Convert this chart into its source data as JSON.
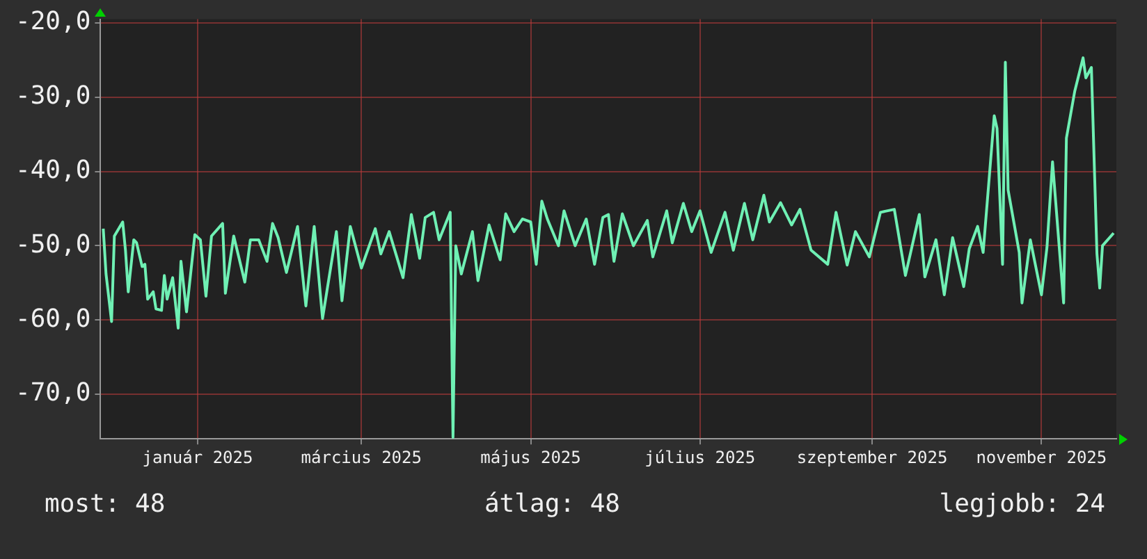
{
  "chart_data": {
    "type": "line",
    "annotations": [
      "most: 48",
      "átlag: 48",
      "legjobb: 24"
    ],
    "xlim": [
      "2024-11-27",
      "2025-11-28"
    ],
    "xticks": [
      {
        "value": "2025-01-01",
        "label": "január 2025"
      },
      {
        "value": "2025-03-01",
        "label": "március 2025"
      },
      {
        "value": "2025-05-01",
        "label": "május 2025"
      },
      {
        "value": "2025-07-01",
        "label": "július 2025"
      },
      {
        "value": "2025-09-01",
        "label": "szeptember 2025"
      },
      {
        "value": "2025-11-01",
        "label": "november 2025"
      }
    ],
    "ylim": [
      -76,
      -19.5
    ],
    "yticks": [
      {
        "value": -70,
        "label": "-70,0"
      },
      {
        "value": -60,
        "label": "-60,0"
      },
      {
        "value": -50,
        "label": "-50,0"
      },
      {
        "value": -40,
        "label": "-40,0"
      },
      {
        "value": -30,
        "label": "-30,0"
      },
      {
        "value": -20,
        "label": "-20,0"
      }
    ],
    "grid": true,
    "marker": "none",
    "line_style": "solid",
    "series": [
      {
        "color": "#6ff0b4",
        "x": [
          "2024-11-28",
          "2024-11-29",
          "2024-12-01",
          "2024-12-02",
          "2024-12-05",
          "2024-12-06",
          "2024-12-07",
          "2024-12-09",
          "2024-12-10",
          "2024-12-12",
          "2024-12-13",
          "2024-12-14",
          "2024-12-16",
          "2024-12-17",
          "2024-12-19",
          "2024-12-20",
          "2024-12-21",
          "2024-12-23",
          "2024-12-25",
          "2024-12-26",
          "2024-12-28",
          "2024-12-31",
          "2025-01-02",
          "2025-01-04",
          "2025-01-06",
          "2025-01-10",
          "2025-01-11",
          "2025-01-14",
          "2025-01-18",
          "2025-01-20",
          "2025-01-23",
          "2025-01-26",
          "2025-01-28",
          "2025-01-30",
          "2025-02-02",
          "2025-02-06",
          "2025-02-09",
          "2025-02-12",
          "2025-02-15",
          "2025-02-20",
          "2025-02-22",
          "2025-02-25",
          "2025-03-01",
          "2025-03-06",
          "2025-03-08",
          "2025-03-11",
          "2025-03-16",
          "2025-03-19",
          "2025-03-22",
          "2025-03-24",
          "2025-03-27",
          "2025-03-29",
          "2025-04-02",
          "2025-04-03",
          "2025-04-04",
          "2025-04-06",
          "2025-04-10",
          "2025-04-12",
          "2025-04-16",
          "2025-04-20",
          "2025-04-22",
          "2025-04-25",
          "2025-04-28",
          "2025-05-01",
          "2025-05-03",
          "2025-05-05",
          "2025-05-07",
          "2025-05-11",
          "2025-05-13",
          "2025-05-17",
          "2025-05-21",
          "2025-05-24",
          "2025-05-27",
          "2025-05-29",
          "2025-05-31",
          "2025-06-03",
          "2025-06-07",
          "2025-06-12",
          "2025-06-14",
          "2025-06-19",
          "2025-06-21",
          "2025-06-25",
          "2025-06-28",
          "2025-07-01",
          "2025-07-05",
          "2025-07-10",
          "2025-07-13",
          "2025-07-17",
          "2025-07-20",
          "2025-07-24",
          "2025-07-26",
          "2025-07-30",
          "2025-08-03",
          "2025-08-06",
          "2025-08-10",
          "2025-08-16",
          "2025-08-19",
          "2025-08-23",
          "2025-08-26",
          "2025-08-31",
          "2025-09-04",
          "2025-09-09",
          "2025-09-13",
          "2025-09-18",
          "2025-09-20",
          "2025-09-24",
          "2025-09-27",
          "2025-09-30",
          "2025-10-04",
          "2025-10-06",
          "2025-10-09",
          "2025-10-11",
          "2025-10-15",
          "2025-10-16",
          "2025-10-18",
          "2025-10-19",
          "2025-10-20",
          "2025-10-24",
          "2025-10-25",
          "2025-10-28",
          "2025-11-01",
          "2025-11-03",
          "2025-11-05",
          "2025-11-09",
          "2025-11-10",
          "2025-11-13",
          "2025-11-16",
          "2025-11-17",
          "2025-11-19",
          "2025-11-21",
          "2025-11-22",
          "2025-11-23",
          "2025-11-27"
        ],
        "values": [
          -47.7,
          -53.8,
          -60.2,
          -48.7,
          -46.8,
          -50.6,
          -56.2,
          -49.2,
          -49.6,
          -52.8,
          -52.5,
          -57.2,
          -56.2,
          -58.5,
          -58.7,
          -54,
          -57.2,
          -54.3,
          -61.1,
          -52.1,
          -58.9,
          -48.5,
          -49.2,
          -56.8,
          -48.7,
          -47,
          -56.4,
          -48.7,
          -54.9,
          -49.2,
          -49.2,
          -52.1,
          -47,
          -48.9,
          -53.6,
          -47.4,
          -58.1,
          -47.4,
          -59.8,
          -48.1,
          -57.4,
          -47.4,
          -53,
          -47.7,
          -51.1,
          -48.1,
          -54.3,
          -45.8,
          -51.7,
          -46.2,
          -45.5,
          -49.2,
          -45.5,
          -75.8,
          -50,
          -53.8,
          -48.1,
          -54.7,
          -47.2,
          -51.9,
          -45.7,
          -48.1,
          -46.4,
          -46.8,
          -52.5,
          -44,
          -46.4,
          -50,
          -45.3,
          -50,
          -46.4,
          -52.5,
          -46.2,
          -45.8,
          -52.1,
          -45.7,
          -50,
          -46.6,
          -51.5,
          -45.3,
          -49.6,
          -44.3,
          -48.1,
          -45.3,
          -50.9,
          -45.5,
          -50.6,
          -44.3,
          -49.2,
          -43.2,
          -46.8,
          -44.2,
          -47.2,
          -45.1,
          -50.6,
          -52.5,
          -45.5,
          -52.6,
          -48.1,
          -51.5,
          -45.5,
          -45.1,
          -54,
          -45.8,
          -54.2,
          -49.2,
          -56.6,
          -48.9,
          -55.5,
          -50.4,
          -47.4,
          -50.9,
          -32.5,
          -34.2,
          -52.5,
          -25.3,
          -42.5,
          -50.9,
          -57.7,
          -49.2,
          -56.6,
          -50.2,
          -38.7,
          -57.7,
          -35.5,
          -29.2,
          -24.7,
          -27.4,
          -26,
          -51.1,
          -55.7,
          -50,
          -48.3
        ]
      }
    ]
  }
}
